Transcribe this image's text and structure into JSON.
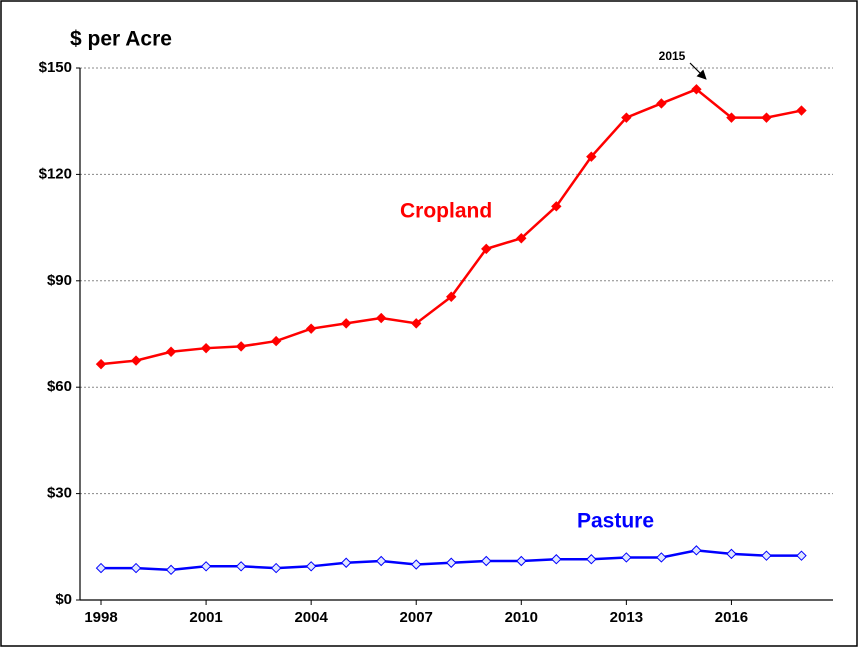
{
  "chart_data": {
    "type": "line",
    "title": "$ per Acre",
    "x": [
      1998,
      1999,
      2000,
      2001,
      2002,
      2003,
      2004,
      2005,
      2006,
      2007,
      2008,
      2009,
      2010,
      2011,
      2012,
      2013,
      2014,
      2015,
      2016,
      2017,
      2018
    ],
    "series": [
      {
        "name": "Cropland",
        "color": "#ff0000",
        "values": [
          66.5,
          67.5,
          70,
          71,
          71.5,
          73,
          76.5,
          78,
          79.5,
          78,
          85.5,
          99,
          102,
          111,
          125,
          136,
          140,
          144,
          136,
          136,
          138
        ]
      },
      {
        "name": "Pasture",
        "color": "#0000ff",
        "values": [
          9,
          9,
          8.5,
          9.5,
          9.5,
          9,
          9.5,
          10.5,
          11,
          10,
          10.5,
          11,
          11,
          11.5,
          11.5,
          12,
          12,
          14,
          13,
          12.5,
          12.5
        ]
      }
    ],
    "annotations": [
      "2015"
    ],
    "xlim": [
      1997.4,
      2018.9
    ],
    "xticks": [
      1998,
      2001,
      2004,
      2007,
      2010,
      2013,
      2016
    ],
    "ylim": [
      0,
      150
    ],
    "yticks": [
      {
        "value": 0,
        "label": "$0"
      },
      {
        "value": 30,
        "label": "$30"
      },
      {
        "value": 60,
        "label": "$60"
      },
      {
        "value": 90,
        "label": "$90"
      },
      {
        "value": 120,
        "label": "$120"
      },
      {
        "value": 150,
        "label": "$150"
      }
    ],
    "grid": true
  }
}
